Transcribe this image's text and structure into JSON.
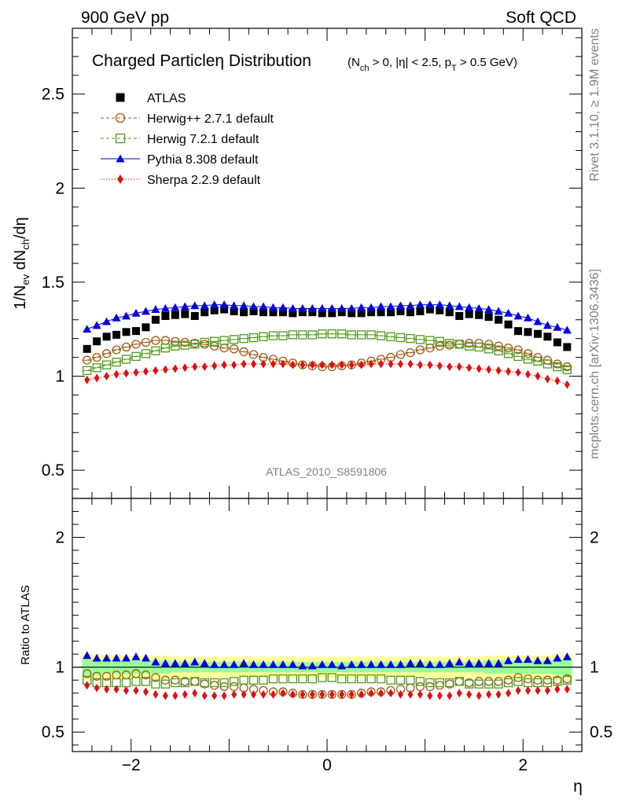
{
  "header": {
    "left": "900 GeV pp",
    "right": "Soft QCD"
  },
  "side_text": {
    "top": "Rivet 3.1.10, ≥ 1.9M events",
    "bottom": "mcplots.cern.ch [arXiv:1306.3436]"
  },
  "chart_data": [
    {
      "type": "scatter",
      "title": "Charged Particleη Distribution",
      "subtitle": "(N_ch > 0, |η| < 2.5, p_T > 0.5 GeV)",
      "watermark": "ATLAS_2010_S8591806",
      "xlabel": "",
      "ylabel": "1/N_ev dN_ch/dη",
      "xlim": [
        -2.6,
        2.6
      ],
      "ylim": [
        0.35,
        2.85
      ],
      "yticks": [
        0.5,
        1,
        1.5,
        2,
        2.5
      ],
      "legend_position": "top-left",
      "x": [
        -2.45,
        -2.35,
        -2.25,
        -2.15,
        -2.05,
        -1.95,
        -1.85,
        -1.75,
        -1.65,
        -1.55,
        -1.45,
        -1.35,
        -1.25,
        -1.15,
        -1.05,
        -0.95,
        -0.85,
        -0.75,
        -0.65,
        -0.55,
        -0.45,
        -0.35,
        -0.25,
        -0.15,
        -0.05,
        0.05,
        0.15,
        0.25,
        0.35,
        0.45,
        0.55,
        0.65,
        0.75,
        0.85,
        0.95,
        1.05,
        1.15,
        1.25,
        1.35,
        1.45,
        1.55,
        1.65,
        1.75,
        1.85,
        1.95,
        2.05,
        2.15,
        2.25,
        2.35,
        2.45
      ],
      "series": [
        {
          "name": "ATLAS",
          "color": "#000000",
          "marker": "square",
          "line": "none",
          "values": [
            1.145,
            1.185,
            1.21,
            1.22,
            1.235,
            1.24,
            1.26,
            1.3,
            1.32,
            1.325,
            1.33,
            1.32,
            1.34,
            1.35,
            1.355,
            1.345,
            1.34,
            1.345,
            1.34,
            1.34,
            1.34,
            1.335,
            1.34,
            1.34,
            1.335,
            1.335,
            1.34,
            1.335,
            1.335,
            1.34,
            1.34,
            1.34,
            1.345,
            1.34,
            1.345,
            1.355,
            1.35,
            1.34,
            1.32,
            1.33,
            1.325,
            1.315,
            1.3,
            1.275,
            1.24,
            1.235,
            1.225,
            1.21,
            1.18,
            1.155
          ]
        },
        {
          "name": "Herwig++ 2.7.1 default",
          "color": "#a05a10",
          "marker": "open-circle",
          "line": "dashed",
          "values": [
            1.085,
            1.1,
            1.12,
            1.14,
            1.155,
            1.17,
            1.18,
            1.19,
            1.19,
            1.185,
            1.18,
            1.175,
            1.17,
            1.16,
            1.15,
            1.145,
            1.13,
            1.115,
            1.1,
            1.09,
            1.08,
            1.07,
            1.06,
            1.055,
            1.05,
            1.05,
            1.055,
            1.06,
            1.07,
            1.08,
            1.09,
            1.1,
            1.115,
            1.125,
            1.14,
            1.15,
            1.16,
            1.165,
            1.17,
            1.175,
            1.175,
            1.17,
            1.16,
            1.15,
            1.14,
            1.12,
            1.1,
            1.085,
            1.065,
            1.05
          ]
        },
        {
          "name": "Herwig 7.2.1 default",
          "color": "#4c9a18",
          "marker": "open-square",
          "line": "dashed",
          "values": [
            1.03,
            1.045,
            1.06,
            1.075,
            1.09,
            1.105,
            1.12,
            1.135,
            1.15,
            1.16,
            1.165,
            1.17,
            1.18,
            1.185,
            1.19,
            1.195,
            1.2,
            1.205,
            1.21,
            1.215,
            1.215,
            1.22,
            1.22,
            1.22,
            1.225,
            1.225,
            1.225,
            1.22,
            1.22,
            1.22,
            1.215,
            1.21,
            1.205,
            1.2,
            1.195,
            1.19,
            1.185,
            1.175,
            1.17,
            1.16,
            1.155,
            1.145,
            1.135,
            1.12,
            1.105,
            1.09,
            1.08,
            1.065,
            1.05,
            1.035
          ]
        },
        {
          "name": "Pythia 8.308 default",
          "color": "#0000e0",
          "marker": "triangle",
          "line": "solid",
          "values": [
            1.25,
            1.27,
            1.29,
            1.31,
            1.32,
            1.335,
            1.345,
            1.355,
            1.36,
            1.365,
            1.37,
            1.375,
            1.375,
            1.38,
            1.38,
            1.375,
            1.375,
            1.37,
            1.37,
            1.365,
            1.365,
            1.36,
            1.36,
            1.36,
            1.36,
            1.36,
            1.36,
            1.36,
            1.365,
            1.365,
            1.37,
            1.37,
            1.375,
            1.375,
            1.38,
            1.38,
            1.38,
            1.375,
            1.37,
            1.365,
            1.36,
            1.355,
            1.345,
            1.335,
            1.32,
            1.31,
            1.29,
            1.27,
            1.26,
            1.245
          ]
        },
        {
          "name": "Sherpa 2.2.9 default",
          "color": "#e01010",
          "marker": "diamond",
          "line": "dotted",
          "values": [
            0.98,
            0.99,
            1.0,
            1.01,
            1.015,
            1.02,
            1.025,
            1.03,
            1.035,
            1.04,
            1.045,
            1.05,
            1.05,
            1.055,
            1.06,
            1.06,
            1.065,
            1.065,
            1.065,
            1.065,
            1.065,
            1.06,
            1.06,
            1.06,
            1.06,
            1.06,
            1.06,
            1.06,
            1.06,
            1.065,
            1.065,
            1.065,
            1.065,
            1.065,
            1.06,
            1.06,
            1.055,
            1.05,
            1.05,
            1.045,
            1.04,
            1.035,
            1.03,
            1.025,
            1.02,
            1.01,
            1.0,
            0.985,
            0.975,
            0.955
          ]
        }
      ]
    },
    {
      "type": "scatter",
      "xlabel": "η",
      "ylabel": "Ratio to ATLAS",
      "xlim": [
        -2.6,
        2.6
      ],
      "ylim": [
        0.35,
        2.3
      ],
      "yticks": [
        0.5,
        1,
        2
      ],
      "xticks": [
        -2,
        0,
        2
      ],
      "x": [
        -2.45,
        -2.35,
        -2.25,
        -2.15,
        -2.05,
        -1.95,
        -1.85,
        -1.75,
        -1.65,
        -1.55,
        -1.45,
        -1.35,
        -1.25,
        -1.15,
        -1.05,
        -0.95,
        -0.85,
        -0.75,
        -0.65,
        -0.55,
        -0.45,
        -0.35,
        -0.25,
        -0.15,
        -0.05,
        0.05,
        0.15,
        0.25,
        0.35,
        0.45,
        0.55,
        0.65,
        0.75,
        0.85,
        0.95,
        1.05,
        1.15,
        1.25,
        1.35,
        1.45,
        1.55,
        1.65,
        1.75,
        1.85,
        1.95,
        2.05,
        2.15,
        2.25,
        2.35,
        2.45
      ],
      "band_green": [
        0.06,
        0.06,
        0.05,
        0.05,
        0.05,
        0.05,
        0.05,
        0.05,
        0.05,
        0.04,
        0.04,
        0.04,
        0.04,
        0.04,
        0.04,
        0.04,
        0.04,
        0.04,
        0.04,
        0.04,
        0.04,
        0.04,
        0.04,
        0.04,
        0.04,
        0.04,
        0.04,
        0.04,
        0.04,
        0.04,
        0.04,
        0.04,
        0.04,
        0.04,
        0.04,
        0.04,
        0.04,
        0.04,
        0.04,
        0.04,
        0.04,
        0.05,
        0.05,
        0.05,
        0.05,
        0.05,
        0.05,
        0.05,
        0.06,
        0.06
      ],
      "band_yellow": [
        0.1,
        0.1,
        0.09,
        0.09,
        0.09,
        0.09,
        0.09,
        0.09,
        0.09,
        0.08,
        0.08,
        0.08,
        0.08,
        0.08,
        0.08,
        0.08,
        0.08,
        0.08,
        0.08,
        0.08,
        0.08,
        0.08,
        0.08,
        0.08,
        0.08,
        0.08,
        0.08,
        0.08,
        0.08,
        0.08,
        0.08,
        0.08,
        0.08,
        0.08,
        0.08,
        0.08,
        0.08,
        0.08,
        0.08,
        0.08,
        0.08,
        0.09,
        0.09,
        0.09,
        0.09,
        0.09,
        0.09,
        0.09,
        0.1,
        0.1
      ],
      "series": [
        {
          "name": "Herwig++ 2.7.1 default",
          "color": "#a05a10",
          "marker": "open-circle",
          "values": [
            0.95,
            0.93,
            0.93,
            0.94,
            0.94,
            0.95,
            0.94,
            0.92,
            0.9,
            0.9,
            0.89,
            0.89,
            0.87,
            0.86,
            0.85,
            0.85,
            0.84,
            0.83,
            0.82,
            0.81,
            0.81,
            0.8,
            0.79,
            0.79,
            0.79,
            0.79,
            0.79,
            0.79,
            0.8,
            0.81,
            0.81,
            0.82,
            0.83,
            0.84,
            0.85,
            0.85,
            0.86,
            0.87,
            0.89,
            0.88,
            0.89,
            0.89,
            0.89,
            0.9,
            0.92,
            0.91,
            0.9,
            0.9,
            0.9,
            0.91
          ]
        },
        {
          "name": "Herwig 7.2.1 default",
          "color": "#4c9a18",
          "marker": "open-square",
          "values": [
            0.9,
            0.88,
            0.88,
            0.88,
            0.88,
            0.89,
            0.89,
            0.87,
            0.87,
            0.88,
            0.88,
            0.89,
            0.88,
            0.88,
            0.88,
            0.89,
            0.9,
            0.9,
            0.9,
            0.91,
            0.91,
            0.91,
            0.91,
            0.91,
            0.92,
            0.92,
            0.91,
            0.91,
            0.91,
            0.91,
            0.91,
            0.9,
            0.9,
            0.9,
            0.89,
            0.88,
            0.88,
            0.88,
            0.89,
            0.87,
            0.87,
            0.87,
            0.87,
            0.88,
            0.89,
            0.88,
            0.88,
            0.88,
            0.89,
            0.9
          ]
        },
        {
          "name": "Pythia 8.308 default",
          "color": "#0000e0",
          "marker": "triangle",
          "values": [
            1.09,
            1.07,
            1.07,
            1.07,
            1.07,
            1.08,
            1.07,
            1.04,
            1.03,
            1.03,
            1.03,
            1.04,
            1.03,
            1.02,
            1.02,
            1.02,
            1.03,
            1.02,
            1.02,
            1.02,
            1.02,
            1.02,
            1.01,
            1.01,
            1.02,
            1.02,
            1.01,
            1.02,
            1.02,
            1.02,
            1.02,
            1.02,
            1.02,
            1.03,
            1.03,
            1.02,
            1.02,
            1.03,
            1.04,
            1.03,
            1.03,
            1.03,
            1.03,
            1.05,
            1.06,
            1.06,
            1.05,
            1.05,
            1.07,
            1.08
          ]
        },
        {
          "name": "Sherpa 2.2.9 default",
          "color": "#e01010",
          "marker": "diamond",
          "values": [
            0.86,
            0.84,
            0.83,
            0.83,
            0.82,
            0.82,
            0.81,
            0.79,
            0.78,
            0.78,
            0.79,
            0.8,
            0.78,
            0.78,
            0.78,
            0.79,
            0.79,
            0.79,
            0.79,
            0.79,
            0.8,
            0.79,
            0.79,
            0.79,
            0.79,
            0.79,
            0.79,
            0.79,
            0.79,
            0.8,
            0.8,
            0.8,
            0.79,
            0.79,
            0.79,
            0.78,
            0.78,
            0.78,
            0.8,
            0.79,
            0.78,
            0.79,
            0.79,
            0.8,
            0.82,
            0.82,
            0.82,
            0.82,
            0.83,
            0.83
          ]
        }
      ]
    }
  ]
}
